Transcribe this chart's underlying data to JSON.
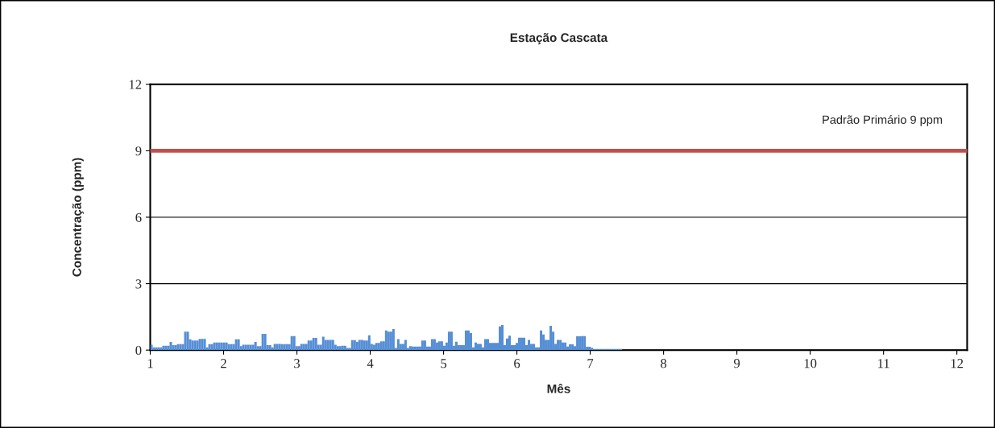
{
  "chart_data": {
    "type": "bar",
    "title": "Estação Cascata",
    "xlabel": "Mês",
    "ylabel": "Concentração (ppm)",
    "xlim": [
      1,
      12.14
    ],
    "xticks": [
      1,
      2,
      3,
      4,
      5,
      6,
      7,
      8,
      9,
      10,
      11,
      12
    ],
    "ylim": [
      0,
      12
    ],
    "yticks": [
      0,
      3,
      6,
      9,
      12
    ],
    "grid": "y",
    "ref_lines": [
      {
        "axis": "y",
        "value": 9,
        "label": "Padrão Primário 9 ppm",
        "color": "#c0504d"
      }
    ],
    "x": [
      1.0,
      1.033,
      1.066,
      1.099,
      1.132,
      1.165,
      1.198,
      1.231,
      1.264,
      1.297,
      1.33,
      1.363,
      1.396,
      1.429,
      1.462,
      1.495,
      1.528,
      1.561,
      1.594,
      1.627,
      1.66,
      1.693,
      1.726,
      1.759,
      1.792,
      1.825,
      1.858,
      1.891,
      1.924,
      1.957,
      1.99,
      2.023,
      2.056,
      2.089,
      2.122,
      2.155,
      2.188,
      2.221,
      2.254,
      2.287,
      2.32,
      2.353,
      2.386,
      2.419,
      2.452,
      2.485,
      2.518,
      2.551,
      2.584,
      2.617,
      2.65,
      2.683,
      2.716,
      2.749,
      2.782,
      2.815,
      2.848,
      2.881,
      2.914,
      2.947,
      2.98,
      3.013,
      3.046,
      3.079,
      3.112,
      3.145,
      3.178,
      3.211,
      3.244,
      3.277,
      3.31,
      3.343,
      3.376,
      3.409,
      3.442,
      3.475,
      3.508,
      3.541,
      3.574,
      3.607,
      3.64,
      3.673,
      3.706,
      3.739,
      3.772,
      3.805,
      3.838,
      3.871,
      3.904,
      3.937,
      3.97,
      4.003,
      4.036,
      4.069,
      4.102,
      4.135,
      4.168,
      4.201,
      4.234,
      4.267,
      4.3,
      4.333,
      4.366,
      4.399,
      4.432,
      4.465,
      4.498,
      4.531,
      4.564,
      4.597,
      4.63,
      4.663,
      4.696,
      4.729,
      4.762,
      4.795,
      4.828,
      4.861,
      4.894,
      4.927,
      4.96,
      4.993,
      5.026,
      5.059,
      5.092,
      5.125,
      5.158,
      5.191,
      5.224,
      5.257,
      5.29,
      5.323,
      5.356,
      5.389,
      5.422,
      5.455,
      5.488,
      5.521,
      5.554,
      5.587,
      5.62,
      5.653,
      5.686,
      5.719,
      5.752,
      5.785,
      5.818,
      5.851,
      5.884,
      5.917,
      5.95,
      5.983,
      6.016,
      6.049,
      6.082,
      6.115,
      6.148,
      6.181,
      6.214,
      6.247,
      6.28,
      6.313,
      6.346,
      6.379,
      6.412,
      6.445,
      6.478,
      6.511,
      6.544,
      6.577,
      6.61,
      6.643,
      6.676,
      6.709,
      6.742,
      6.775,
      6.808,
      6.841,
      6.874,
      6.907,
      6.94,
      6.973,
      7.006,
      7.039,
      7.072,
      7.105,
      7.138,
      7.171,
      7.204,
      7.237,
      7.27,
      7.303,
      7.336,
      7.369,
      7.402
    ],
    "series": [
      {
        "color": "#558ed5",
        "values": [
          0.24,
          0.12,
          0.12,
          0.12,
          0.12,
          0.2,
          0.2,
          0.2,
          0.37,
          0.22,
          0.22,
          0.27,
          0.27,
          0.27,
          0.83,
          0.83,
          0.49,
          0.43,
          0.43,
          0.43,
          0.51,
          0.51,
          0.51,
          0.12,
          0.27,
          0.27,
          0.34,
          0.34,
          0.34,
          0.34,
          0.34,
          0.34,
          0.27,
          0.27,
          0.27,
          0.49,
          0.49,
          0.18,
          0.24,
          0.24,
          0.24,
          0.24,
          0.24,
          0.37,
          0.18,
          0.18,
          0.73,
          0.73,
          0.22,
          0.22,
          0.12,
          0.28,
          0.28,
          0.28,
          0.27,
          0.27,
          0.27,
          0.27,
          0.63,
          0.63,
          0.18,
          0.18,
          0.28,
          0.28,
          0.28,
          0.43,
          0.43,
          0.55,
          0.55,
          0.24,
          0.24,
          0.61,
          0.46,
          0.46,
          0.46,
          0.46,
          0.24,
          0.18,
          0.18,
          0.2,
          0.2,
          0.1,
          0.1,
          0.45,
          0.45,
          0.37,
          0.46,
          0.46,
          0.43,
          0.43,
          0.67,
          0.28,
          0.24,
          0.32,
          0.32,
          0.4,
          0.4,
          0.89,
          0.83,
          0.83,
          0.95,
          0.1,
          0.5,
          0.28,
          0.28,
          0.46,
          0.1,
          0.18,
          0.16,
          0.16,
          0.16,
          0.16,
          0.43,
          0.43,
          0.16,
          0.16,
          0.5,
          0.5,
          0.34,
          0.4,
          0.4,
          0.2,
          0.34,
          0.83,
          0.83,
          0.2,
          0.38,
          0.22,
          0.22,
          0.22,
          0.89,
          0.89,
          0.77,
          0.12,
          0.34,
          0.28,
          0.28,
          0.12,
          0.5,
          0.5,
          0.32,
          0.32,
          0.32,
          0.32,
          1.07,
          1.13,
          0.22,
          0.52,
          0.65,
          0.22,
          0.22,
          0.32,
          0.56,
          0.56,
          0.56,
          0.22,
          0.46,
          0.28,
          0.28,
          0.12,
          0.12,
          0.89,
          0.71,
          0.46,
          0.46,
          1.1,
          0.83,
          0.28,
          0.46,
          0.46,
          0.34,
          0.34,
          0.16,
          0.26,
          0.26,
          0.18,
          0.62,
          0.62,
          0.63,
          0.63,
          0.15,
          0.15,
          0.11,
          0.05,
          0.05,
          0.05,
          0.05,
          0.05,
          0.05,
          0.05,
          0.05,
          0.05,
          0.05,
          0.05,
          0.05
        ]
      }
    ]
  }
}
